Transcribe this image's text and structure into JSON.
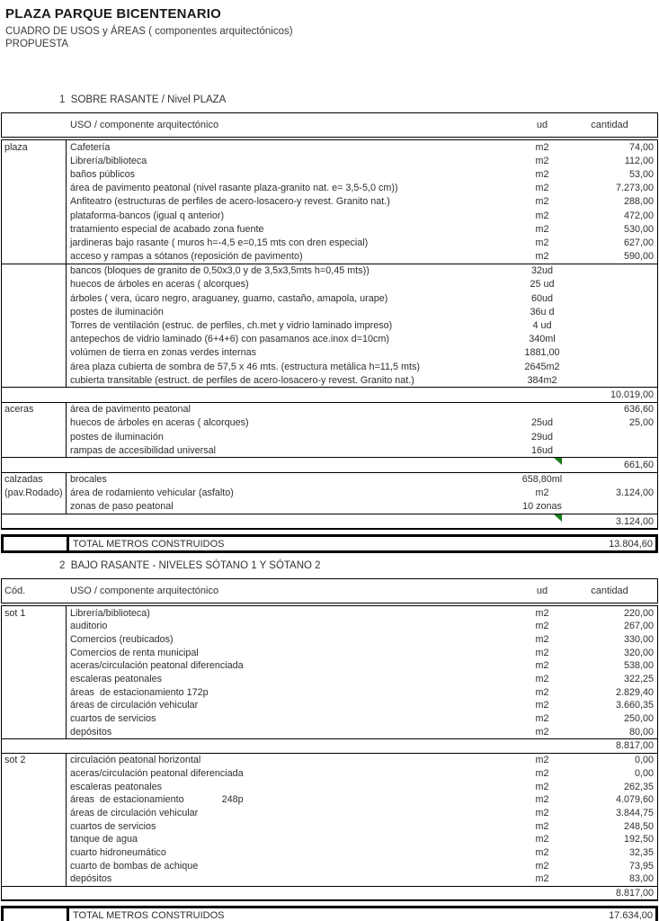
{
  "page": {
    "title": "PLAZA PARQUE BICENTENARIO",
    "subtitle": "CUADRO DE USOS y ÁREAS ( componentes arquitectónicos)",
    "subtitle2": "PROPUESTA"
  },
  "flag_color": "#1a7a1a",
  "tables": [
    {
      "section_label": "1  SOBRE RASANTE / Nivel PLAZA",
      "header": {
        "c1": "",
        "uso": "USO / componente arquitectónico",
        "ud": "ud",
        "qty": "cantidad"
      },
      "groups": [
        {
          "divider_after": [
            8
          ],
          "rows": [
            {
              "c1": "plaza",
              "uso": "Cafetería",
              "ud": "m2",
              "qty": "74,00"
            },
            {
              "uso": "Librería/biblioteca",
              "ud": "m2",
              "qty": "112,00"
            },
            {
              "uso": "baños públicos",
              "ud": "m2",
              "qty": "53,00"
            },
            {
              "uso": "área de pavimento peatonal (nivel rasante plaza-granito nat. e= 3,5-5,0 cm))",
              "ud": "m2",
              "qty": "7.273,00"
            },
            {
              "uso": "Anfiteatro (estructuras de perfiles de acero-losacero-y revest. Granito nat.)",
              "ud": "m2",
              "qty": "288,00"
            },
            {
              "uso": "plataforma-bancos (igual q anterior)",
              "ud": "m2",
              "qty": "472,00"
            },
            {
              "uso": "tratamiento especial de acabado zona fuente",
              "ud": "m2",
              "qty": "530,00"
            },
            {
              "uso": "jardineras bajo rasante ( muros h=-4,5 e=0,15 mts con dren especial)",
              "ud": "m2",
              "qty": "627,00"
            },
            {
              "uso": "acceso y rampas a sótanos (reposición de pavimento)",
              "ud": "m2",
              "qty": "590,00"
            },
            {
              "uso": "bancos (bloques de granito de 0,50x3,0 y de 3,5x3,5mts h=0,45 mts))",
              "ud": "32ud"
            },
            {
              "uso": "huecos de árboles en aceras ( alcorques)",
              "ud": "25 ud"
            },
            {
              "uso": "árboles ( vera, úcaro negro, araguaney, guamo, castaño, amapola, urape)",
              "ud": "60ud"
            },
            {
              "uso": "postes de iluminación",
              "ud": "36u d"
            },
            {
              "uso": "Torres de ventilación (estruc. de perfiles, ch.met y vidrio laminado impreso)",
              "ud": "4 ud"
            },
            {
              "uso": "antepechos de vidrio laminado (6+4+6) con pasamanos ace.inox d=10cm)",
              "ud": "340ml"
            },
            {
              "uso": "volúmen de tierra en zonas verdes internas",
              "ud": "1881,00"
            },
            {
              "uso": "área plaza cubierta de sombra de 57,5 x 46 mts. (estructura metálica h=11,5 mts)",
              "ud": "2645m2"
            },
            {
              "uso": "cubierta transitable (estruct. de perfiles de acero-losacero-y revest. Granito nat.)",
              "ud": "384m2"
            }
          ],
          "subtotal": {
            "value": "10.019,00",
            "flag": false
          }
        },
        {
          "rows": [
            {
              "c1": "aceras",
              "uso": "área de pavimento peatonal",
              "qty": "636,60"
            },
            {
              "uso": "huecos de árboles en aceras ( alcorques)",
              "ud": "25ud",
              "qty": "25,00"
            },
            {
              "uso": "postes de iluminación",
              "ud": "29ud"
            },
            {
              "uso": "rampas de accesibilidad universal",
              "ud": "16ud"
            }
          ],
          "subtotal": {
            "value": "661,60",
            "flag": true
          }
        },
        {
          "rows": [
            {
              "c1": "calzadas",
              "uso": "brocales",
              "ud": "658,80ml"
            },
            {
              "c1": "(pav.Rodado)",
              "uso": "área de rodamiento vehicular (asfalto)",
              "ud": "m2",
              "qty": "3.124,00"
            },
            {
              "uso": "zonas de paso peatonal",
              "ud": "10 zonas"
            }
          ],
          "subtotal": {
            "value": "3.124,00",
            "flag": true
          }
        }
      ],
      "total": {
        "label": "TOTAL METROS CONSTRUIDOS",
        "value": "13.804,60"
      }
    },
    {
      "section_label": "2  BAJO RASANTE - NIVELES SÓTANO 1 Y SÓTANO 2",
      "header": {
        "c1": "Cód.",
        "uso": "USO / componente arquitectónico",
        "ud": "ud",
        "qty": "cantidad"
      },
      "groups": [
        {
          "rows": [
            {
              "c1": "sot 1",
              "uso": "Librería/biblioteca)",
              "ud": "m2",
              "qty": "220,00"
            },
            {
              "uso": "auditorio",
              "ud": "m2",
              "qty": "267,00"
            },
            {
              "uso": "Comercios (reubicados)",
              "ud": "m2",
              "qty": "330,00"
            },
            {
              "uso": "Comercios de renta municipal",
              "ud": "m2",
              "qty": "320,00"
            },
            {
              "uso": "aceras/circulación peatonal diferenciada",
              "ud": "m2",
              "qty": "538,00"
            },
            {
              "uso": "escaleras peatonales",
              "ud": "m2",
              "qty": "322,25"
            },
            {
              "uso": "áreas  de estacionamiento 172p",
              "ud": "m2",
              "qty": "2.829,40"
            },
            {
              "uso": "áreas de circulación vehicular",
              "ud": "m2",
              "qty": "3.660,35"
            },
            {
              "uso": "cuartos de servicios",
              "ud": "m2",
              "qty": "250,00"
            },
            {
              "uso": "depósitos",
              "ud": "m2",
              "qty": "80,00"
            }
          ],
          "subtotal": {
            "value": "8.817,00",
            "flag": false
          }
        },
        {
          "rows": [
            {
              "c1": "sot 2",
              "uso": "circulación peatonal horizontal",
              "ud": "m2",
              "qty": "0,00"
            },
            {
              "uso": "aceras/circulación peatonal diferenciada",
              "ud": "m2",
              "qty": "0,00"
            },
            {
              "uso": "escaleras peatonales",
              "ud": "m2",
              "qty": "262,35"
            },
            {
              "uso": "áreas  de estacionamiento              248p",
              "ud": "m2",
              "qty": "4.079,60"
            },
            {
              "uso": "áreas de circulación vehicular",
              "ud": "m2",
              "qty": "3.844,75"
            },
            {
              "uso": "cuartos de servicios",
              "ud": "m2",
              "qty": "248,50"
            },
            {
              "uso": "tanque de agua",
              "ud": "m2",
              "qty": "192,50"
            },
            {
              "uso": "cuarto hidroneumático",
              "ud": "m2",
              "qty": "32,35"
            },
            {
              "uso": "cuarto de bombas de achique",
              "ud": "m2",
              "qty": "73,95"
            },
            {
              "uso": "depósitos",
              "ud": "m2",
              "qty": "83,00"
            }
          ],
          "subtotal": {
            "value": "8.817,00",
            "flag": false
          }
        }
      ],
      "total": {
        "label": "TOTAL METROS CONSTRUIDOS",
        "value": "17.634,00"
      }
    }
  ]
}
